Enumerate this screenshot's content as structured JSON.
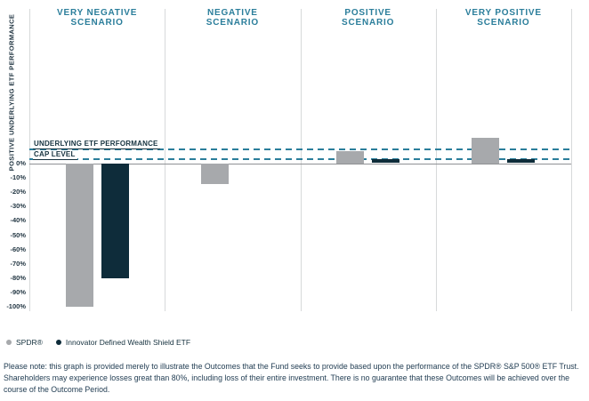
{
  "chart_data": {
    "type": "bar",
    "ylabel": "POSITIVE UNDERLYING ETF PERFORMANCE",
    "categories": [
      {
        "line1": "VERY NEGATIVE",
        "line2": "SCENARIO"
      },
      {
        "line1": "NEGATIVE",
        "line2": "SCENARIO"
      },
      {
        "line1": "POSITIVE",
        "line2": "SCENARIO"
      },
      {
        "line1": "VERY POSITIVE",
        "line2": "SCENARIO"
      }
    ],
    "series": [
      {
        "name": "SPDR®",
        "color": "#a7a9ac",
        "values": [
          -100,
          -14,
          8.5,
          18
        ]
      },
      {
        "name": "Innovator Defined Wealth Shield ETF",
        "color": "#0e2c3a",
        "values": [
          -80,
          0,
          2.5,
          2.5
        ]
      }
    ],
    "yticks": [
      "0%",
      "-10%",
      "-20%",
      "-30%",
      "-40%",
      "-50%",
      "-60%",
      "-70%",
      "-80%",
      "-90%",
      "-100%"
    ],
    "ytick_values": [
      0,
      -10,
      -20,
      -30,
      -40,
      -50,
      -60,
      -70,
      -80,
      -90,
      -100
    ],
    "ylim": [
      -104,
      108
    ],
    "annotations": {
      "cap_label_line1": "UNDERLYING ETF PERFORMANCE",
      "cap_label_line2": "CAP LEVEL",
      "dashed_line_levels": [
        9.5,
        2.5
      ],
      "dashed_line_color": "#2b7e9b"
    },
    "legend_position": "bottom-left",
    "grid": "vertical-dividers"
  },
  "colors": {
    "accent_teal": "#2b7e9b",
    "spdr_gray": "#a7a9ac",
    "shield_navy": "#0e2c3a",
    "zero_line": "#8f9194",
    "divider": "#d7d9da",
    "text_dark": "#16323f"
  },
  "footnote": {
    "text": "Please note: this graph is provided merely to illustrate the Outcomes that the Fund seeks to provide based upon the performance of the SPDR® S&P 500® ETF Trust. Shareholders may experience losses great than 80%, including loss of their entire investment. There is no guarantee that these Outcomes will be achieved over the course of the Outcome Period."
  }
}
